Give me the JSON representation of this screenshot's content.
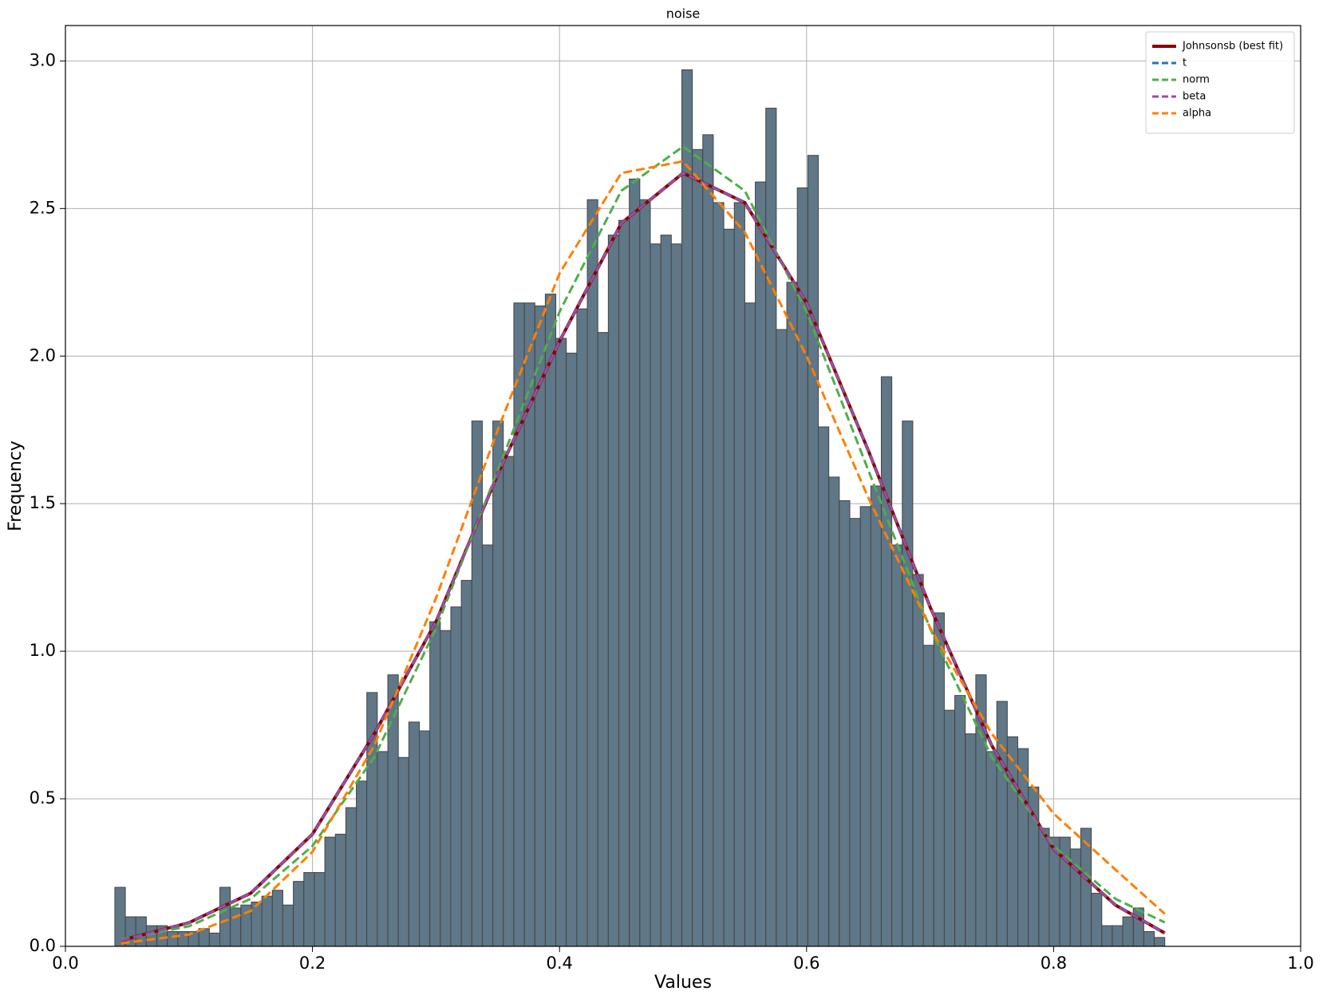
{
  "chart_data": {
    "type": "histogram",
    "title": "noise",
    "x_label": "Values",
    "y_label": "Frequency",
    "bins": [
      0.04,
      0.0485,
      0.057,
      0.0655,
      0.074,
      0.0825,
      0.091,
      0.0995,
      0.108,
      0.1165,
      0.125,
      0.1335,
      0.142,
      0.1505,
      0.159,
      0.1675,
      0.176,
      0.1845,
      0.193,
      0.2015,
      0.21,
      0.2185,
      0.227,
      0.2355,
      0.244,
      0.2525,
      0.261,
      0.2695,
      0.278,
      0.2865,
      0.295,
      0.3035,
      0.312,
      0.3205,
      0.329,
      0.3375,
      0.346,
      0.3545,
      0.363,
      0.3715,
      0.38,
      0.3885,
      0.397,
      0.4055,
      0.414,
      0.4225,
      0.431,
      0.4395,
      0.448,
      0.4565,
      0.465,
      0.4735,
      0.482,
      0.4905,
      0.499,
      0.5075,
      0.516,
      0.5245,
      0.533,
      0.5415,
      0.55,
      0.5585,
      0.567,
      0.5755,
      0.584,
      0.5925,
      0.601,
      0.6095,
      0.618,
      0.6265,
      0.635,
      0.6435,
      0.652,
      0.6605,
      0.669,
      0.6775,
      0.686,
      0.6945,
      0.703,
      0.7115,
      0.72,
      0.7285,
      0.737,
      0.7455,
      0.754,
      0.7625,
      0.771,
      0.7795,
      0.788,
      0.7965,
      0.805,
      0.8135,
      0.822,
      0.8305,
      0.839,
      0.8475,
      0.856,
      0.8645,
      0.873,
      0.8815,
      0.89
    ],
    "values": [
      0.2,
      0.1,
      0.1,
      0.07,
      0.07,
      0.05,
      0.05,
      0.05,
      0.06,
      0.045,
      0.2,
      0.13,
      0.14,
      0.15,
      0.17,
      0.19,
      0.14,
      0.22,
      0.25,
      0.25,
      0.37,
      0.38,
      0.47,
      0.56,
      0.86,
      0.66,
      0.92,
      0.64,
      0.76,
      0.73,
      1.1,
      1.07,
      1.15,
      1.24,
      1.78,
      1.36,
      1.78,
      1.66,
      2.18,
      2.18,
      2.17,
      2.21,
      2.06,
      2.01,
      2.16,
      2.53,
      2.08,
      2.41,
      2.46,
      2.6,
      2.53,
      2.38,
      2.41,
      2.38,
      2.97,
      2.7,
      2.75,
      2.52,
      2.43,
      2.52,
      2.18,
      2.59,
      2.84,
      2.09,
      2.25,
      2.57,
      2.68,
      1.76,
      1.59,
      1.51,
      1.45,
      1.49,
      1.56,
      1.93,
      1.36,
      1.78,
      1.26,
      1.02,
      1.13,
      0.8,
      0.85,
      0.72,
      0.92,
      0.66,
      0.83,
      0.71,
      0.67,
      0.54,
      0.4,
      0.37,
      0.37,
      0.33,
      0.4,
      0.18,
      0.07,
      0.07,
      0.1,
      0.13,
      0.05,
      0.03
    ],
    "color": "#5f7787",
    "series": [
      {
        "name": "Johnsonsb (best fit)",
        "color": "#8b0000",
        "linestyle": "solid",
        "x": [
          0.045,
          0.1,
          0.15,
          0.2,
          0.25,
          0.3,
          0.35,
          0.4,
          0.45,
          0.5,
          0.55,
          0.6,
          0.65,
          0.7,
          0.75,
          0.8,
          0.85,
          0.89
        ],
        "values": [
          0.02,
          0.08,
          0.18,
          0.38,
          0.72,
          1.1,
          1.6,
          2.05,
          2.45,
          2.62,
          2.52,
          2.18,
          1.68,
          1.15,
          0.68,
          0.33,
          0.14,
          0.045
        ]
      },
      {
        "name": "t",
        "color": "#1f77b4",
        "linestyle": "dashed",
        "x": [
          0.045,
          0.1,
          0.15,
          0.2,
          0.25,
          0.3,
          0.35,
          0.4,
          0.45,
          0.5,
          0.55,
          0.6,
          0.65,
          0.7,
          0.75,
          0.8,
          0.85,
          0.89
        ],
        "values": [
          0.02,
          0.08,
          0.18,
          0.38,
          0.72,
          1.1,
          1.6,
          2.05,
          2.45,
          2.62,
          2.52,
          2.18,
          1.68,
          1.15,
          0.68,
          0.33,
          0.14,
          0.045
        ]
      },
      {
        "name": "norm",
        "color": "#4daf4a",
        "linestyle": "dashed",
        "x": [
          0.045,
          0.1,
          0.15,
          0.2,
          0.25,
          0.3,
          0.35,
          0.4,
          0.45,
          0.5,
          0.55,
          0.6,
          0.65,
          0.7,
          0.75,
          0.8,
          0.85,
          0.89
        ],
        "values": [
          0.023,
          0.068,
          0.161,
          0.34,
          0.641,
          1.077,
          1.613,
          2.15,
          2.56,
          2.71,
          2.56,
          2.15,
          1.613,
          1.077,
          0.641,
          0.34,
          0.161,
          0.081
        ]
      },
      {
        "name": "beta",
        "color": "#984ea3",
        "linestyle": "dashed",
        "x": [
          0.045,
          0.1,
          0.15,
          0.2,
          0.25,
          0.3,
          0.35,
          0.4,
          0.45,
          0.5,
          0.55,
          0.6,
          0.65,
          0.7,
          0.75,
          0.8,
          0.85,
          0.89
        ],
        "values": [
          0.02,
          0.08,
          0.18,
          0.38,
          0.72,
          1.1,
          1.6,
          2.05,
          2.45,
          2.62,
          2.52,
          2.18,
          1.68,
          1.15,
          0.68,
          0.33,
          0.14,
          0.045
        ]
      },
      {
        "name": "alpha",
        "color": "#ff7f00",
        "linestyle": "dashed",
        "x": [
          0.045,
          0.1,
          0.15,
          0.2,
          0.25,
          0.3,
          0.35,
          0.4,
          0.45,
          0.5,
          0.55,
          0.6,
          0.65,
          0.7,
          0.75,
          0.8,
          0.85,
          0.89
        ],
        "values": [
          0.01,
          0.04,
          0.12,
          0.32,
          0.68,
          1.18,
          1.75,
          2.28,
          2.62,
          2.66,
          2.42,
          2.0,
          1.52,
          1.08,
          0.72,
          0.45,
          0.26,
          0.11
        ]
      }
    ],
    "xlim": [
      0,
      1
    ],
    "xticks": [
      {
        "value": 0,
        "label": "0.0"
      },
      0.2,
      0.4,
      0.6,
      0.8,
      {
        "value": 1,
        "label": "1.0"
      }
    ],
    "ylim": [
      0,
      3.12
    ],
    "yticks": [
      {
        "value": 0,
        "label": "0.0"
      },
      0.5,
      {
        "value": 1,
        "label": "1.0"
      },
      1.5,
      {
        "value": 2,
        "label": "2.0"
      },
      2.5,
      {
        "value": 3,
        "label": "3.0"
      }
    ],
    "grid": true,
    "legend": "upper right"
  }
}
